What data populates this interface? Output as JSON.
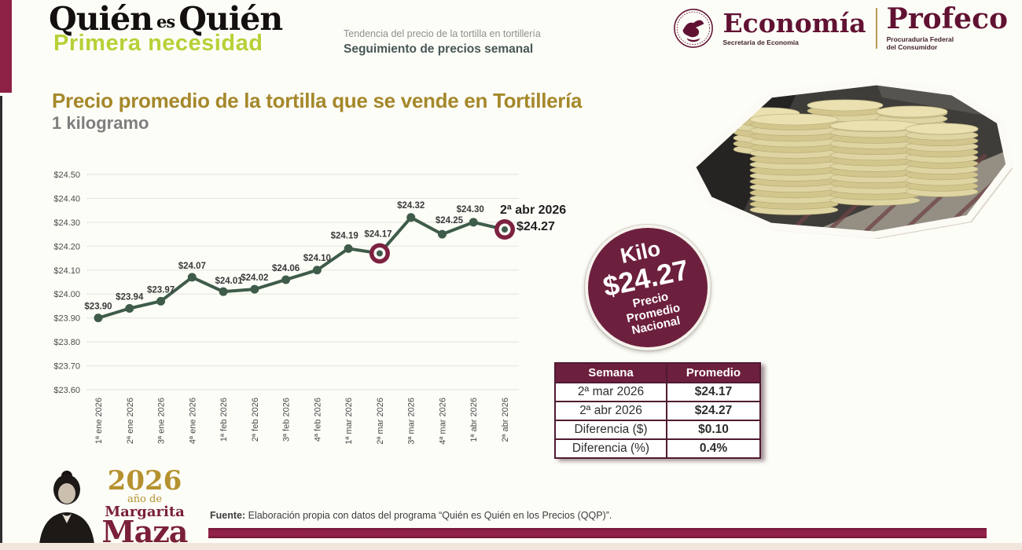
{
  "header": {
    "logo": {
      "part1": "Quién",
      "part2": "es",
      "part3": "Quién",
      "line2": "Primera necesidad"
    },
    "tagline_small": "Tendencia del precio de la tortilla en tortillería",
    "tagline_bold": "Seguimiento de precios semanal",
    "economia": {
      "name": "Economía",
      "sub": "Secretaría de Economía"
    },
    "profeco": {
      "name": "Profeco",
      "sub1": "Procuraduría Federal",
      "sub2": "del Consumidor"
    }
  },
  "title": {
    "main": "Precio promedio de la tortilla que se vende en Tortillería",
    "sub": "1 kilogramo"
  },
  "chart_data": {
    "type": "line",
    "title": "Precio promedio de la tortilla que se vende en Tortillería (1 kilogramo)",
    "xlabel": "",
    "ylabel": "",
    "categories": [
      "1ª ene 2026",
      "2ª ene 2026",
      "3ª ene 2026",
      "4ª ene 2026",
      "1ª feb 2026",
      "2ª feb 2026",
      "3ª feb 2026",
      "4ª feb 2026",
      "1ª mar 2026",
      "2ª mar 2026",
      "3ª mar 2026",
      "4ª mar 2026",
      "1ª abr 2026",
      "2ª abr 2026"
    ],
    "values": [
      23.9,
      23.94,
      23.97,
      24.07,
      24.01,
      24.02,
      24.06,
      24.1,
      24.19,
      24.17,
      24.32,
      24.25,
      24.3,
      24.27
    ],
    "point_labels": [
      "$23.90",
      "$23.94",
      "$23.97",
      "$24.07",
      "$24.01",
      "$24.02",
      "$24.06",
      "$24.10",
      "$24.19",
      "$24.17",
      "$24.32",
      "$24.25",
      "$24.30",
      "$24.27"
    ],
    "yticks": [
      24.5,
      24.4,
      24.3,
      24.2,
      24.1,
      24.0,
      23.9,
      23.8,
      23.7,
      23.6
    ],
    "ytick_labels": [
      "$24.50",
      "$24.40",
      "$24.30",
      "$24.20",
      "$24.10",
      "$24.00",
      "$23.90",
      "$23.80",
      "$23.70",
      "$23.60"
    ],
    "ylim": [
      23.6,
      24.5
    ],
    "grid": true,
    "legend": "none",
    "highlighted_indices": [
      9,
      13
    ],
    "annotation": {
      "label": "2ª abr 2026",
      "value": "$24.27"
    }
  },
  "badge": {
    "line1": "Kilo",
    "line2": "$24.27",
    "line3": "Precio",
    "line4": "Promedio",
    "line5": "Nacional"
  },
  "table": {
    "headers": [
      "Semana",
      "Promedio"
    ],
    "rows": [
      [
        "2ª mar 2026",
        "$24.17"
      ],
      [
        "2ª abr 2026",
        "$24.27"
      ],
      [
        "Diferencia ($)",
        "$0.10"
      ],
      [
        "Diferencia (%)",
        "0.4%"
      ]
    ]
  },
  "year_badge": {
    "year": "2026",
    "line2": "año de",
    "line3": "Margarita",
    "line4": "Maza"
  },
  "footer": {
    "label": "Fuente:",
    "text": " Elaboración propia con datos del programa “Quién es Quién en los Precios (QQP)”."
  },
  "colors": {
    "maroon": "#611232",
    "maroon_bar": "#8d2045",
    "badge_bg": "#6d1f3e",
    "ring": "#7c2240",
    "line_green": "#3e5c49",
    "logo_green": "#b6d137",
    "title_gold": "#a5882b",
    "table_border": "#4f1b31",
    "gold_divider": "#b99a57",
    "grid_line": "#e7e7e1"
  }
}
